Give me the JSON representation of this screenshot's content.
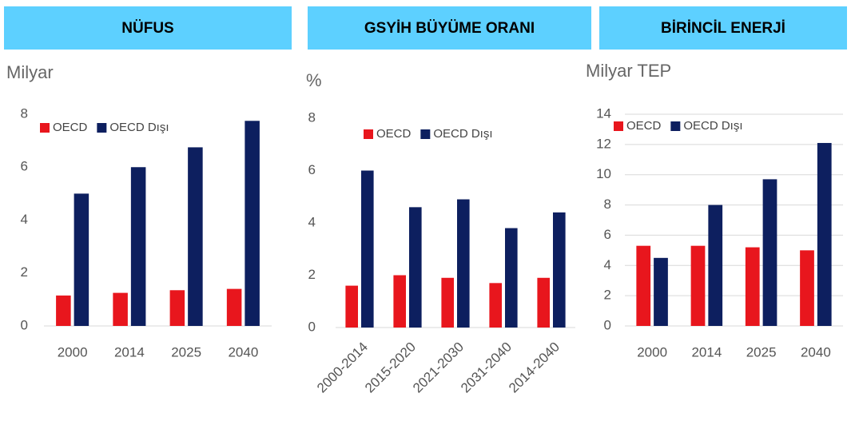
{
  "chart_data": [
    {
      "type": "bar",
      "title": "NÜFUS",
      "ylabel": "Milyar",
      "categories": [
        "2000",
        "2014",
        "2025",
        "2040"
      ],
      "series": [
        {
          "name": "OECD",
          "color": "#e8161d",
          "values": [
            1.15,
            1.25,
            1.35,
            1.4
          ]
        },
        {
          "name": "OECD Dışı",
          "color": "#0d1f5f",
          "values": [
            5.0,
            6.0,
            6.75,
            7.75
          ]
        }
      ],
      "ylim": [
        0,
        8
      ],
      "yticks": [
        0,
        2,
        4,
        6,
        8
      ],
      "grid": false,
      "legend": "top"
    },
    {
      "type": "bar",
      "title": "GSYİH BÜYÜME ORANI",
      "ylabel": "%",
      "categories": [
        "2000-2014",
        "2015-2020",
        "2021-2030",
        "2031-2040",
        "2014-2040"
      ],
      "series": [
        {
          "name": "OECD",
          "color": "#e8161d",
          "values": [
            1.6,
            2.0,
            1.9,
            1.7,
            1.9
          ]
        },
        {
          "name": "OECD Dışı",
          "color": "#0d1f5f",
          "values": [
            6.0,
            4.6,
            4.9,
            3.8,
            4.4
          ]
        }
      ],
      "ylim": [
        0,
        8
      ],
      "yticks": [
        0,
        2,
        4,
        6,
        8
      ],
      "grid": false,
      "legend": "top"
    },
    {
      "type": "bar",
      "title": "BİRİNCİL ENERJİ",
      "ylabel": "Milyar TEP",
      "categories": [
        "2000",
        "2014",
        "2025",
        "2040"
      ],
      "series": [
        {
          "name": "OECD",
          "color": "#e8161d",
          "values": [
            5.3,
            5.3,
            5.2,
            5.0
          ]
        },
        {
          "name": "OECD Dışı",
          "color": "#0d1f5f",
          "values": [
            4.5,
            8.0,
            9.7,
            12.1
          ]
        }
      ],
      "ylim": [
        0,
        14
      ],
      "yticks": [
        0,
        2,
        4,
        6,
        8,
        10,
        12,
        14
      ],
      "grid": true,
      "legend": "top"
    }
  ]
}
